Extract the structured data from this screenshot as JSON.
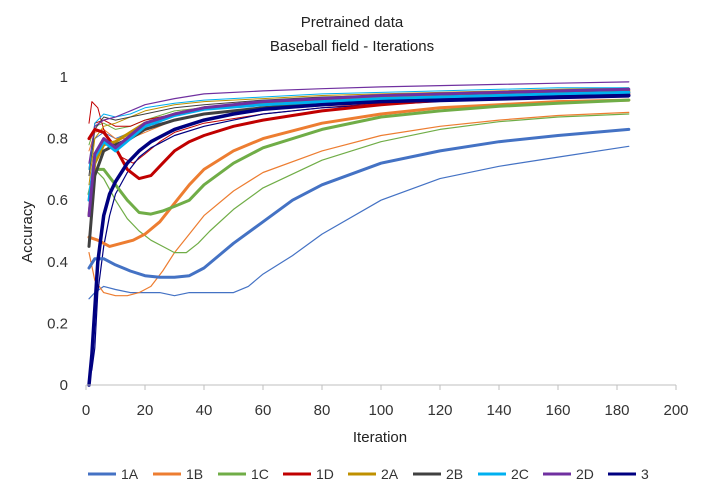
{
  "chart_data": {
    "type": "line",
    "title": "Pretrained data",
    "subtitle": "Baseball field - Iterations",
    "xlabel": "Iteration",
    "ylabel": "Accuracy",
    "xlim": [
      0,
      200
    ],
    "ylim": [
      0,
      1
    ],
    "x_ticks": [
      "0",
      "20",
      "40",
      "60",
      "80",
      "100",
      "120",
      "140",
      "160",
      "180",
      "200"
    ],
    "y_ticks": [
      "0",
      "0.2",
      "0.4",
      "0.6",
      "0.8",
      "1"
    ],
    "grid": false,
    "legend_position": "bottom",
    "series": [
      {
        "name": "1A",
        "color": "#4472C4",
        "width": 3,
        "x": [
          1,
          3,
          6,
          10,
          15,
          20,
          25,
          30,
          35,
          40,
          45,
          50,
          60,
          70,
          80,
          100,
          120,
          140,
          160,
          184
        ],
        "y": [
          0.38,
          0.41,
          0.41,
          0.39,
          0.37,
          0.355,
          0.35,
          0.35,
          0.355,
          0.38,
          0.42,
          0.46,
          0.53,
          0.6,
          0.65,
          0.72,
          0.76,
          0.79,
          0.81,
          0.83
        ]
      },
      {
        "name": "1B",
        "color": "#ED7D31",
        "width": 3,
        "x": [
          1,
          4,
          8,
          12,
          16,
          20,
          25,
          30,
          35,
          40,
          50,
          60,
          80,
          100,
          120,
          140,
          160,
          184
        ],
        "y": [
          0.48,
          0.47,
          0.45,
          0.46,
          0.47,
          0.49,
          0.53,
          0.59,
          0.65,
          0.7,
          0.76,
          0.8,
          0.85,
          0.88,
          0.9,
          0.91,
          0.92,
          0.925
        ]
      },
      {
        "name": "1C",
        "color": "#70AD47",
        "width": 3,
        "x": [
          1,
          3,
          6,
          10,
          14,
          18,
          22,
          26,
          30,
          35,
          40,
          50,
          60,
          80,
          100,
          120,
          140,
          160,
          184
        ],
        "y": [
          0.62,
          0.7,
          0.7,
          0.65,
          0.6,
          0.56,
          0.555,
          0.565,
          0.58,
          0.6,
          0.65,
          0.72,
          0.77,
          0.83,
          0.87,
          0.89,
          0.905,
          0.915,
          0.925
        ]
      },
      {
        "name": "1D",
        "color": "#C00000",
        "width": 3,
        "x": [
          1,
          3,
          6,
          10,
          14,
          18,
          22,
          26,
          30,
          35,
          40,
          50,
          60,
          80,
          100,
          120,
          140,
          160,
          184
        ],
        "y": [
          0.8,
          0.83,
          0.82,
          0.77,
          0.7,
          0.67,
          0.68,
          0.72,
          0.76,
          0.79,
          0.81,
          0.84,
          0.86,
          0.89,
          0.91,
          0.925,
          0.935,
          0.94,
          0.945
        ]
      },
      {
        "name": "2A",
        "color": "#BF9000",
        "width": 3,
        "x": [
          1,
          3,
          6,
          10,
          15,
          20,
          30,
          40,
          60,
          80,
          100,
          120,
          140,
          160,
          184
        ],
        "y": [
          0.55,
          0.72,
          0.78,
          0.79,
          0.82,
          0.85,
          0.88,
          0.9,
          0.915,
          0.925,
          0.935,
          0.94,
          0.945,
          0.95,
          0.955
        ]
      },
      {
        "name": "2B",
        "color": "#404040",
        "width": 3,
        "x": [
          1,
          3,
          6,
          10,
          15,
          20,
          30,
          40,
          60,
          80,
          100,
          120,
          140,
          160,
          184
        ],
        "y": [
          0.45,
          0.68,
          0.76,
          0.78,
          0.8,
          0.83,
          0.86,
          0.88,
          0.9,
          0.915,
          0.925,
          0.935,
          0.94,
          0.945,
          0.95
        ]
      },
      {
        "name": "2C",
        "color": "#00B0F0",
        "width": 3,
        "x": [
          1,
          3,
          6,
          10,
          15,
          20,
          30,
          40,
          60,
          80,
          100,
          120,
          140,
          160,
          184
        ],
        "y": [
          0.6,
          0.74,
          0.79,
          0.76,
          0.8,
          0.84,
          0.875,
          0.895,
          0.91,
          0.92,
          0.93,
          0.935,
          0.94,
          0.945,
          0.95
        ]
      },
      {
        "name": "2D",
        "color": "#7030A0",
        "width": 3,
        "x": [
          1,
          3,
          6,
          10,
          15,
          20,
          30,
          40,
          60,
          80,
          100,
          120,
          140,
          160,
          184
        ],
        "y": [
          0.55,
          0.75,
          0.8,
          0.77,
          0.81,
          0.85,
          0.88,
          0.9,
          0.92,
          0.93,
          0.94,
          0.945,
          0.95,
          0.955,
          0.96
        ]
      },
      {
        "name": "3",
        "color": "#000080",
        "width": 3.5,
        "x": [
          1,
          2,
          4,
          6,
          8,
          10,
          14,
          18,
          22,
          26,
          30,
          40,
          50,
          60,
          80,
          100,
          120,
          140,
          160,
          184
        ],
        "y": [
          0.0,
          0.1,
          0.4,
          0.55,
          0.62,
          0.66,
          0.72,
          0.76,
          0.79,
          0.81,
          0.83,
          0.86,
          0.88,
          0.895,
          0.91,
          0.92,
          0.925,
          0.93,
          0.935,
          0.94
        ]
      },
      {
        "color": "#4472C4",
        "width": 1.2,
        "x": [
          1,
          3,
          6,
          10,
          15,
          20,
          25,
          30,
          35,
          40,
          45,
          50,
          55,
          60,
          70,
          80,
          100,
          120,
          140,
          160,
          184
        ],
        "y": [
          0.28,
          0.3,
          0.32,
          0.31,
          0.3,
          0.3,
          0.3,
          0.29,
          0.3,
          0.3,
          0.3,
          0.3,
          0.32,
          0.36,
          0.42,
          0.49,
          0.6,
          0.67,
          0.71,
          0.74,
          0.775
        ]
      },
      {
        "color": "#4472C4",
        "width": 1,
        "x": [
          1,
          3,
          6,
          10,
          15,
          20,
          30,
          40,
          60,
          80,
          100,
          120,
          140,
          160,
          184
        ],
        "y": [
          0.72,
          0.8,
          0.82,
          0.8,
          0.82,
          0.84,
          0.86,
          0.88,
          0.9,
          0.91,
          0.92,
          0.93,
          0.935,
          0.94,
          0.945
        ]
      },
      {
        "color": "#ED7D31",
        "width": 1.2,
        "x": [
          1,
          3,
          6,
          10,
          14,
          18,
          22,
          26,
          30,
          35,
          40,
          50,
          60,
          80,
          100,
          120,
          140,
          160,
          184
        ],
        "y": [
          0.43,
          0.34,
          0.3,
          0.29,
          0.29,
          0.3,
          0.32,
          0.37,
          0.43,
          0.49,
          0.55,
          0.63,
          0.69,
          0.76,
          0.81,
          0.84,
          0.86,
          0.875,
          0.885
        ]
      },
      {
        "color": "#ED7D31",
        "width": 1,
        "x": [
          1,
          3,
          6,
          10,
          15,
          20,
          30,
          40,
          60,
          80,
          100,
          120,
          140,
          160,
          184
        ],
        "y": [
          0.76,
          0.82,
          0.83,
          0.8,
          0.8,
          0.82,
          0.86,
          0.88,
          0.9,
          0.915,
          0.925,
          0.935,
          0.94,
          0.945,
          0.95
        ]
      },
      {
        "color": "#70AD47",
        "width": 1.2,
        "x": [
          1,
          3,
          6,
          10,
          14,
          18,
          22,
          26,
          30,
          34,
          38,
          42,
          50,
          60,
          80,
          100,
          120,
          140,
          160,
          184
        ],
        "y": [
          0.55,
          0.7,
          0.67,
          0.6,
          0.54,
          0.5,
          0.47,
          0.45,
          0.43,
          0.43,
          0.46,
          0.5,
          0.57,
          0.64,
          0.73,
          0.79,
          0.83,
          0.855,
          0.87,
          0.88
        ]
      },
      {
        "color": "#70AD47",
        "width": 1,
        "x": [
          1,
          3,
          6,
          10,
          15,
          20,
          30,
          40,
          60,
          80,
          100,
          120,
          140,
          160,
          184
        ],
        "y": [
          0.78,
          0.84,
          0.85,
          0.83,
          0.84,
          0.86,
          0.89,
          0.9,
          0.915,
          0.925,
          0.935,
          0.94,
          0.945,
          0.95,
          0.955
        ]
      },
      {
        "color": "#C00000",
        "width": 1,
        "x": [
          1,
          2,
          4,
          6,
          9,
          12,
          16,
          20,
          25,
          30,
          40,
          60,
          80,
          100,
          120,
          140,
          160,
          184
        ],
        "y": [
          0.85,
          0.92,
          0.9,
          0.83,
          0.78,
          0.74,
          0.72,
          0.75,
          0.79,
          0.82,
          0.85,
          0.88,
          0.9,
          0.915,
          0.925,
          0.935,
          0.94,
          0.945
        ]
      },
      {
        "color": "#C00000",
        "width": 1,
        "x": [
          1,
          3,
          6,
          10,
          15,
          20,
          30,
          40,
          60,
          80,
          100,
          120,
          140,
          160,
          184
        ],
        "y": [
          0.7,
          0.85,
          0.86,
          0.84,
          0.84,
          0.86,
          0.88,
          0.9,
          0.915,
          0.925,
          0.935,
          0.94,
          0.945,
          0.95,
          0.955
        ]
      },
      {
        "color": "#BF9000",
        "width": 1,
        "x": [
          1,
          3,
          6,
          10,
          15,
          20,
          30,
          40,
          60,
          80,
          100,
          120,
          140,
          160,
          184
        ],
        "y": [
          0.65,
          0.8,
          0.84,
          0.85,
          0.87,
          0.89,
          0.91,
          0.92,
          0.93,
          0.94,
          0.945,
          0.95,
          0.955,
          0.96,
          0.965
        ]
      },
      {
        "color": "#404040",
        "width": 1,
        "x": [
          1,
          3,
          6,
          10,
          15,
          20,
          30,
          40,
          60,
          80,
          100,
          120,
          140,
          160,
          184
        ],
        "y": [
          0.68,
          0.83,
          0.87,
          0.86,
          0.87,
          0.88,
          0.9,
          0.91,
          0.925,
          0.935,
          0.94,
          0.945,
          0.95,
          0.955,
          0.96
        ]
      },
      {
        "color": "#00B0F0",
        "width": 1,
        "x": [
          1,
          3,
          6,
          10,
          15,
          20,
          30,
          40,
          60,
          80,
          100,
          120,
          140,
          160,
          184
        ],
        "y": [
          0.7,
          0.85,
          0.88,
          0.87,
          0.88,
          0.9,
          0.915,
          0.925,
          0.935,
          0.945,
          0.95,
          0.955,
          0.96,
          0.965,
          0.965
        ]
      },
      {
        "color": "#7030A0",
        "width": 1.2,
        "x": [
          1,
          3,
          6,
          10,
          15,
          20,
          30,
          40,
          60,
          80,
          100,
          120,
          140,
          160,
          184
        ],
        "y": [
          0.72,
          0.84,
          0.86,
          0.87,
          0.89,
          0.91,
          0.93,
          0.945,
          0.955,
          0.962,
          0.968,
          0.972,
          0.976,
          0.98,
          0.984
        ]
      },
      {
        "color": "#000080",
        "width": 1.2,
        "x": [
          1,
          2,
          3,
          4,
          6,
          8,
          10,
          14,
          18,
          22,
          26,
          30,
          40,
          50,
          60,
          80,
          100,
          120,
          140,
          160,
          184
        ],
        "y": [
          0.02,
          0.05,
          0.12,
          0.3,
          0.45,
          0.55,
          0.62,
          0.69,
          0.74,
          0.77,
          0.79,
          0.81,
          0.84,
          0.86,
          0.88,
          0.9,
          0.91,
          0.92,
          0.925,
          0.93,
          0.935
        ]
      }
    ]
  }
}
